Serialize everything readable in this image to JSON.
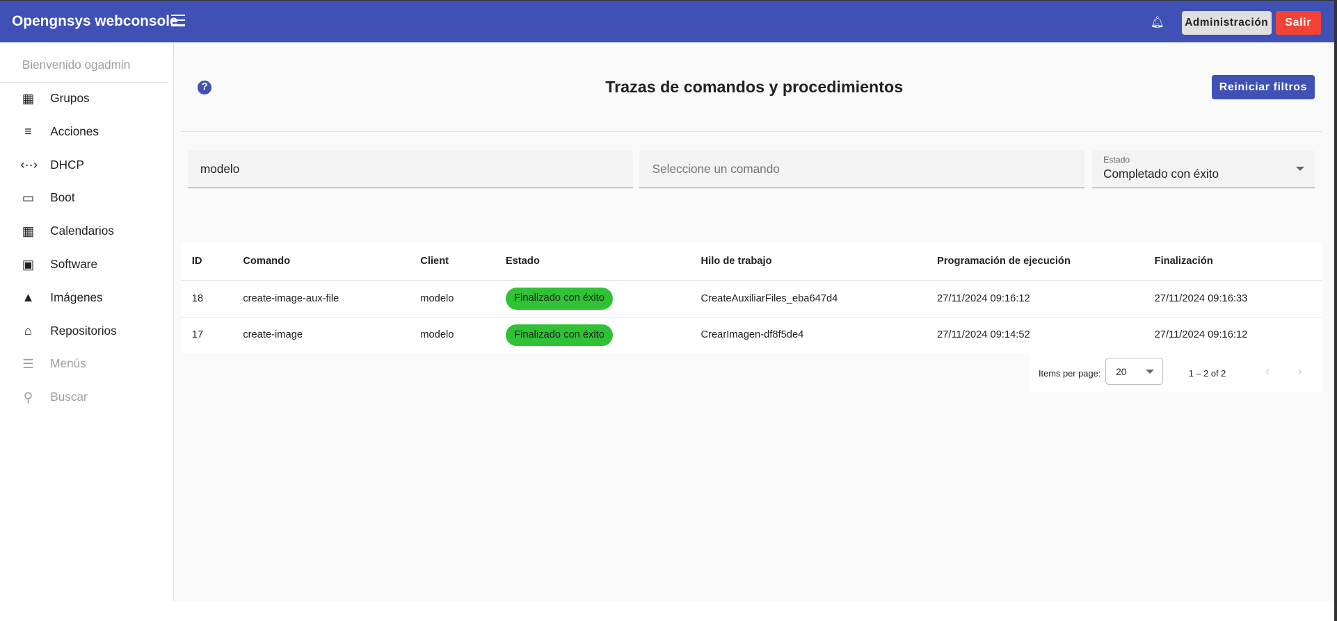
{
  "header": {
    "brand": "Opengnsys webconsole",
    "admin_label": "Administración",
    "logout_label": "Salir"
  },
  "sidebar": {
    "welcome": "Bienvenido ogadmin",
    "items": [
      {
        "label": "Grupos",
        "icon": "building-icon",
        "glyph": "▦"
      },
      {
        "label": "Acciones",
        "icon": "playlist-play-icon",
        "glyph": "≡"
      },
      {
        "label": "DHCP",
        "icon": "settings-ethernet-icon",
        "glyph": "‹··›"
      },
      {
        "label": "Boot",
        "icon": "monitor-icon",
        "glyph": "▭"
      },
      {
        "label": "Calendarios",
        "icon": "calendar-icon",
        "glyph": "▦"
      },
      {
        "label": "Software",
        "icon": "terminal-icon",
        "glyph": "▣"
      },
      {
        "label": "Imágenes",
        "icon": "image-icon",
        "glyph": "▲"
      },
      {
        "label": "Repositorios",
        "icon": "warehouse-icon",
        "glyph": "⌂"
      },
      {
        "label": "Menús",
        "icon": "list-icon",
        "glyph": "☰",
        "disabled": true
      },
      {
        "label": "Buscar",
        "icon": "search-icon",
        "glyph": "⚲",
        "disabled": true
      }
    ]
  },
  "page": {
    "title": "Trazas de comandos y procedimientos",
    "reset_label": "Reiniciar filtros"
  },
  "filters": {
    "client_value": "modelo",
    "command_placeholder": "Seleccione un comando",
    "status_label": "Estado",
    "status_value": "Completado con éxito"
  },
  "table": {
    "columns": [
      "ID",
      "Comando",
      "Client",
      "Estado",
      "Hilo de trabajo",
      "Programación de ejecución",
      "Finalización"
    ],
    "rows": [
      [
        "18",
        "create-image-aux-file",
        "modelo",
        "Finalizado con éxito",
        "CreateAuxiliarFiles_eba647d4",
        "27/11/2024 09:16:12",
        "27/11/2024 09:16:33"
      ],
      [
        "17",
        "create-image",
        "modelo",
        "Finalizado con éxito",
        "CrearImagen-df8f5de4",
        "27/11/2024 09:14:52",
        "27/11/2024 09:16:12"
      ]
    ]
  },
  "pagination": {
    "items_per_page_label": "Items per page:",
    "page_size": "20",
    "range": "1 – 2 of 2"
  },
  "colors": {
    "primary": "#3f51b5",
    "danger": "#f44336",
    "success": "#2ec234"
  }
}
